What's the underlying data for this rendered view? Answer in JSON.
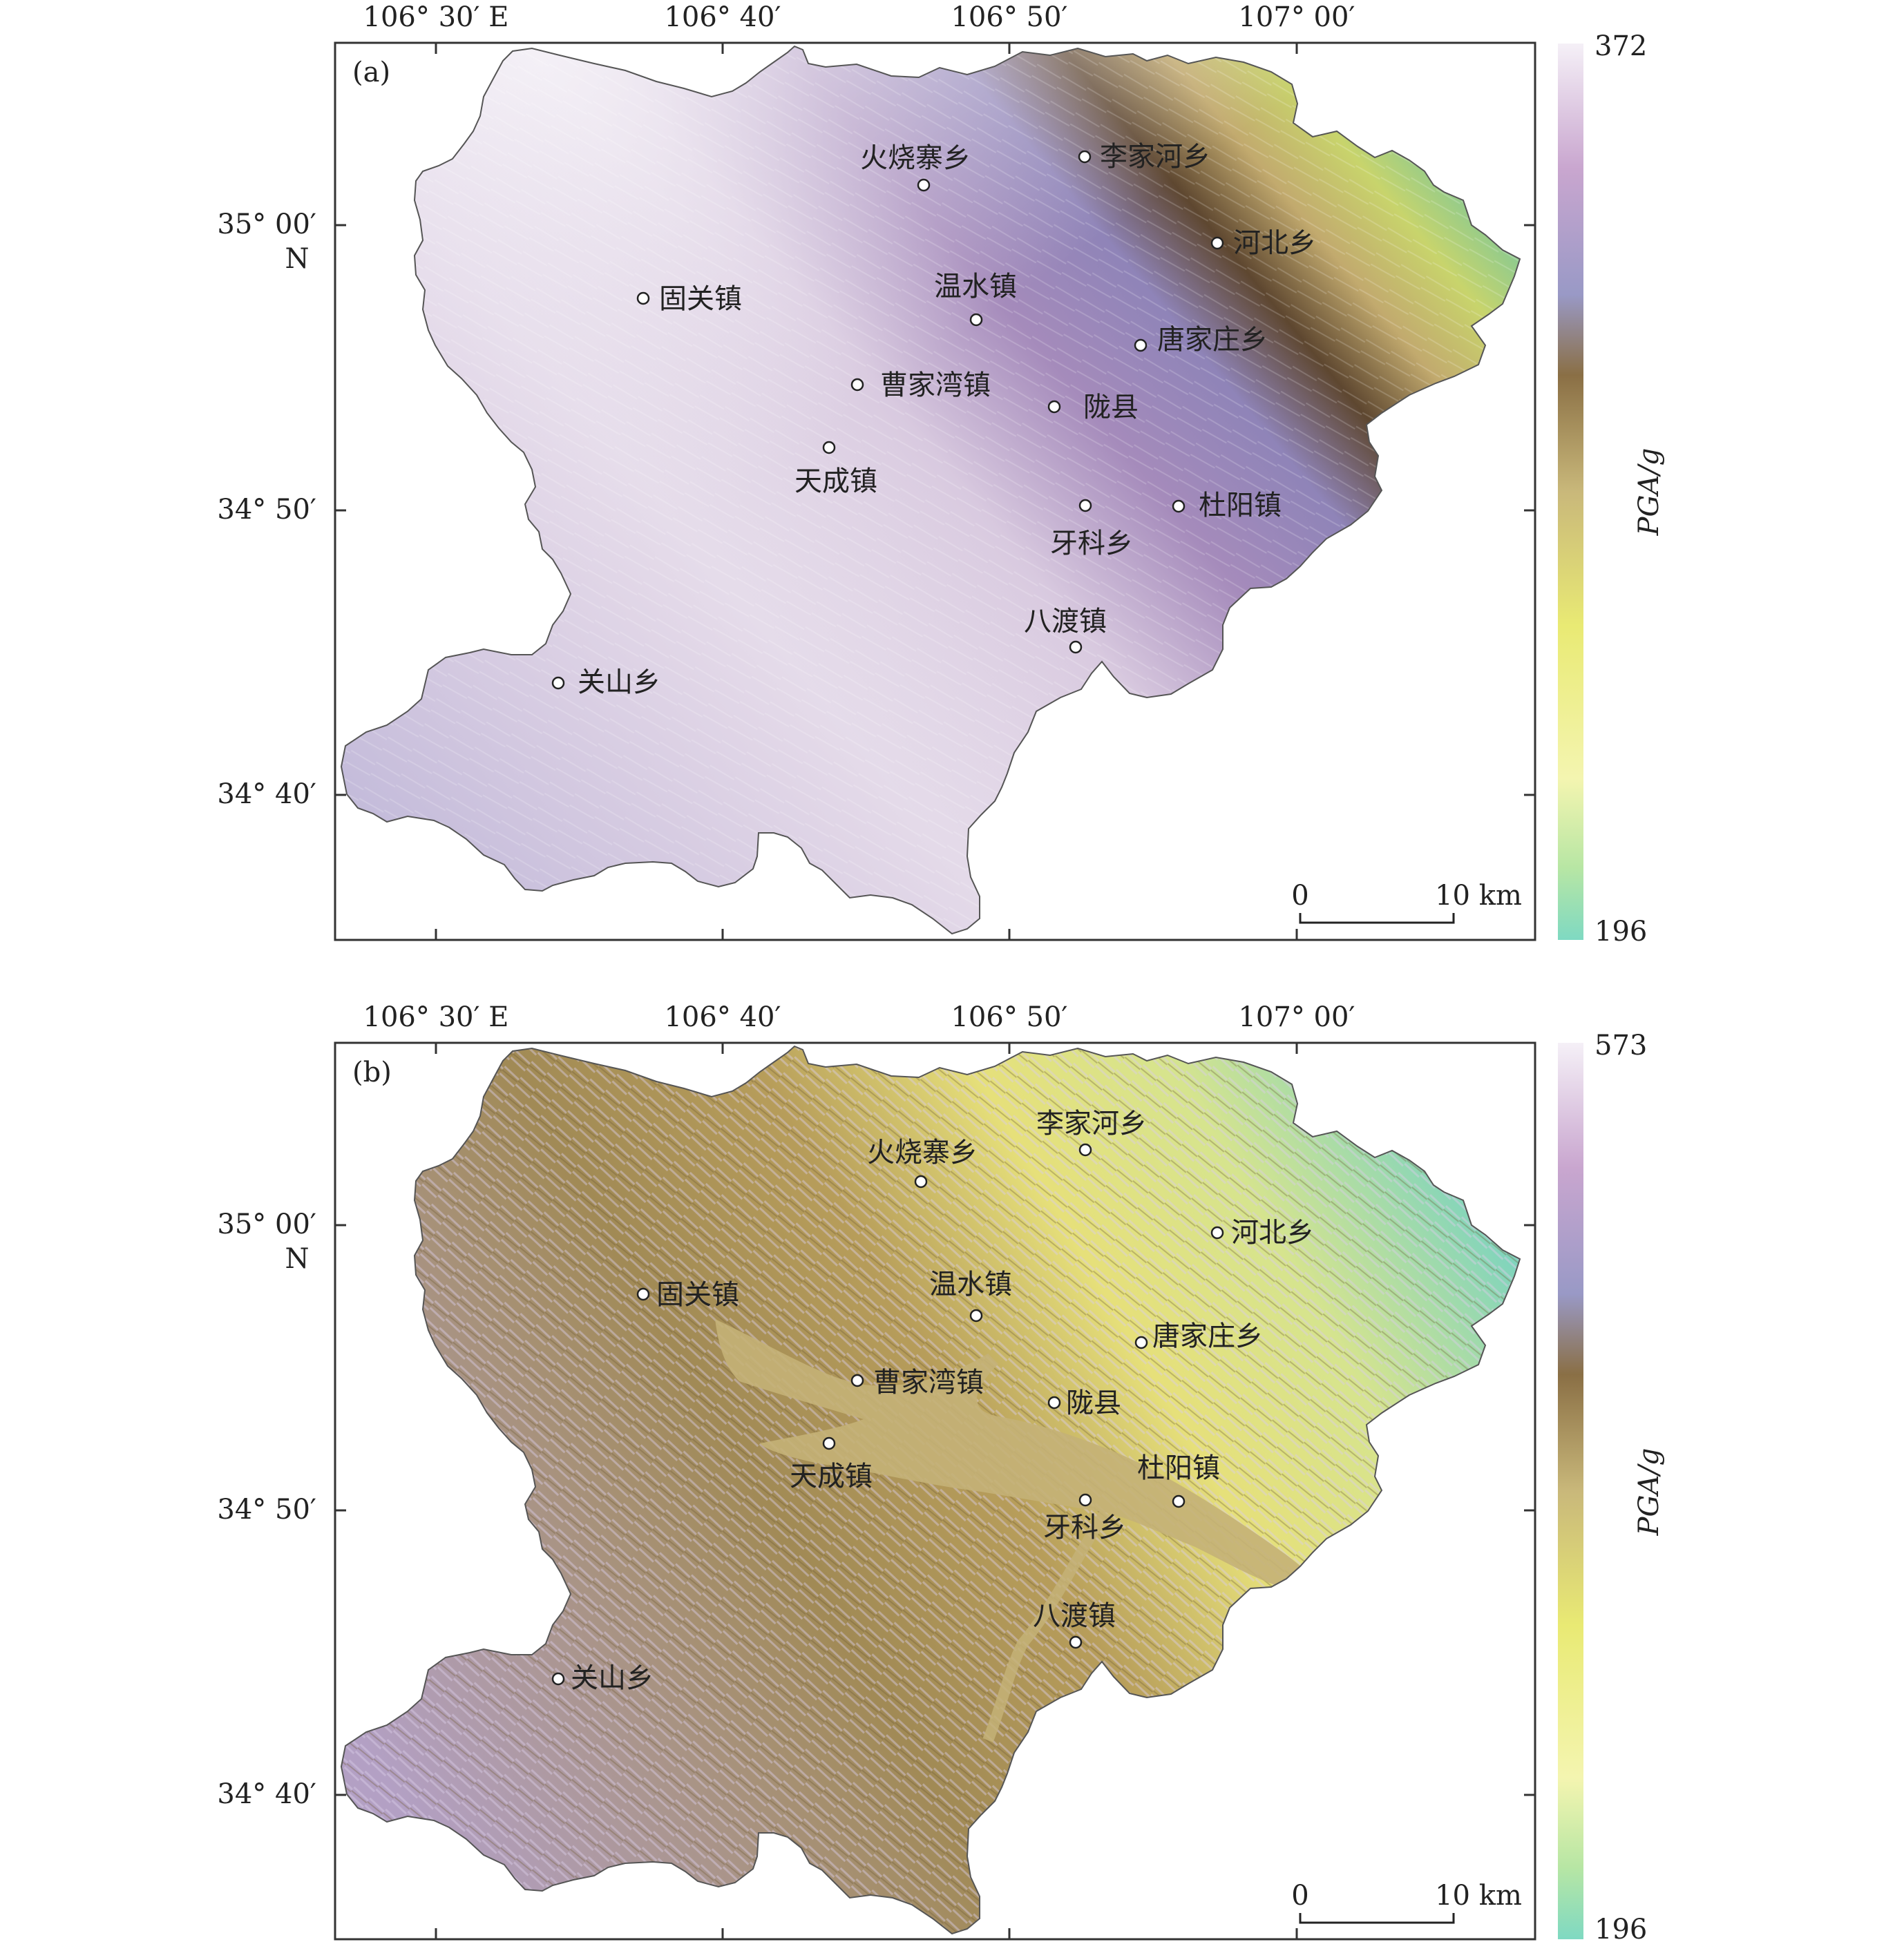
{
  "panels": [
    {
      "id": "a",
      "label": "(a)",
      "lon_ticks": [
        "106° 30′ E",
        "106° 40′",
        "106° 50′",
        "107° 00′"
      ],
      "lat_ticks": [
        "35° 00′",
        "34° 50′",
        "34° 40′"
      ],
      "lat_suffix": "N",
      "colorbar": {
        "max": "372",
        "min": "196",
        "label": "PGA/g"
      },
      "scale_bar": {
        "start": "0",
        "end": "10 km"
      },
      "towns": [
        {
          "name": "火烧寨乡"
        },
        {
          "name": "李家河乡"
        },
        {
          "name": "河北乡"
        },
        {
          "name": "固关镇"
        },
        {
          "name": "温水镇"
        },
        {
          "name": "唐家庄乡"
        },
        {
          "name": "曹家湾镇"
        },
        {
          "name": "陇县"
        },
        {
          "name": "天成镇"
        },
        {
          "name": "杜阳镇"
        },
        {
          "name": "牙科乡"
        },
        {
          "name": "八渡镇"
        },
        {
          "name": "关山乡"
        }
      ]
    },
    {
      "id": "b",
      "label": "(b)",
      "lon_ticks": [
        "106° 30′ E",
        "106° 40′",
        "106° 50′",
        "107° 00′"
      ],
      "lat_ticks": [
        "35° 00′",
        "34° 50′",
        "34° 40′"
      ],
      "lat_suffix": "N",
      "colorbar": {
        "max": "573",
        "min": "196",
        "label": "PGA/g"
      },
      "scale_bar": {
        "start": "0",
        "end": "10 km"
      },
      "towns": [
        {
          "name": "火烧寨乡"
        },
        {
          "name": "李家河乡"
        },
        {
          "name": "河北乡"
        },
        {
          "name": "固关镇"
        },
        {
          "name": "温水镇"
        },
        {
          "name": "唐家庄乡"
        },
        {
          "name": "曹家湾镇"
        },
        {
          "name": "陇县"
        },
        {
          "name": "天成镇"
        },
        {
          "name": "杜阳镇"
        },
        {
          "name": "牙科乡"
        },
        {
          "name": "八渡镇"
        },
        {
          "name": "关山乡"
        }
      ]
    }
  ],
  "colors": {
    "colorbar_stops": [
      "#7fd9c2",
      "#b7e6a4",
      "#f4f5b0",
      "#e9ea74",
      "#c9b87a",
      "#8a6f45",
      "#9999c6",
      "#c9a6cf",
      "#f5f0f7"
    ],
    "panel_a_field": [
      "#f3eef6",
      "#b596c4",
      "#9a8fc4",
      "#5e4730",
      "#c9c56c",
      "#62c2a9"
    ],
    "panel_b_field": [
      "#c9b6d8",
      "#a99053",
      "#d2c271",
      "#e9e98c",
      "#86d7c1"
    ],
    "river": "#c4b177",
    "frame": "#333333"
  }
}
